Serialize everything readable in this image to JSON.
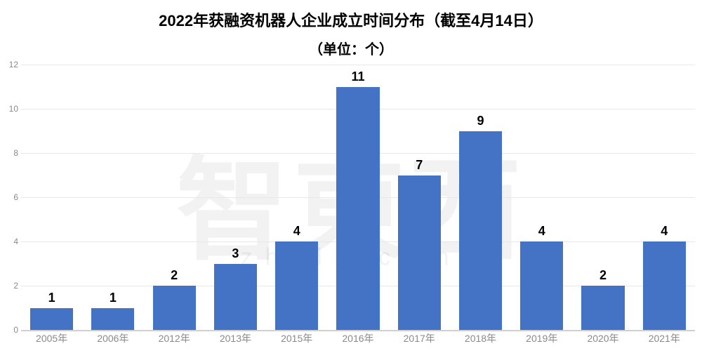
{
  "chart": {
    "type": "bar",
    "title": "2022年获融资机器人企业成立时间分布（截至4月14日）",
    "subtitle": "（单位：个）",
    "title_fontsize": 22,
    "subtitle_fontsize": 20,
    "title_color": "#000000",
    "value_label_fontsize": 18,
    "value_label_color": "#000000",
    "categories": [
      "2005年",
      "2006年",
      "2012年",
      "2013年",
      "2015年",
      "2016年",
      "2017年",
      "2018年",
      "2019年",
      "2020年",
      "2021年"
    ],
    "values": [
      1,
      1,
      2,
      3,
      4,
      11,
      7,
      9,
      4,
      2,
      4
    ],
    "bar_color": "#4472c4",
    "bar_width": 0.7,
    "background_color": "#ffffff",
    "grid_color": "#e8e8e8",
    "axis_color": "#d0d0d0",
    "ylim": [
      0,
      12
    ],
    "ytick_step": 2,
    "yticks": [
      0,
      2,
      4,
      6,
      8,
      10,
      12
    ],
    "ytick_fontsize": 12,
    "ytick_color": "#8a8a8a",
    "xtick_fontsize": 14,
    "xtick_color": "#8a8a8a",
    "watermark_main": "智東西",
    "watermark_sub": "zhidx.com",
    "watermark_main_fontsize": 160,
    "watermark_sub_fontsize": 34,
    "watermark_color": "rgba(0,0,0,0.05)"
  }
}
